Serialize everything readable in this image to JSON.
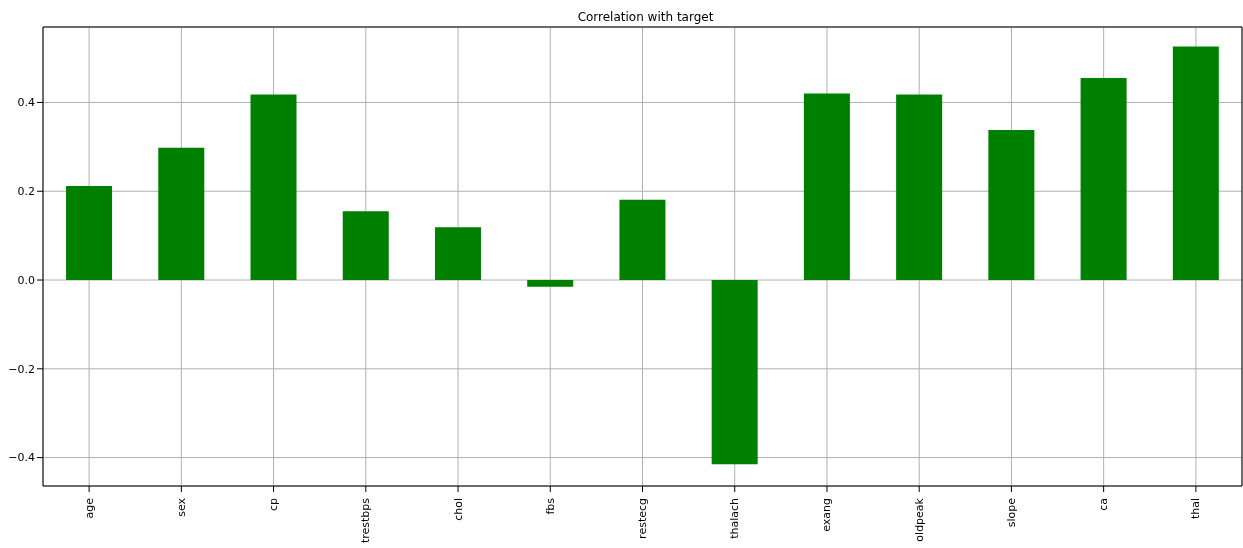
{
  "chart_data": {
    "type": "bar",
    "title": "Correlation with target",
    "categories": [
      "age",
      "sex",
      "cp",
      "trestbps",
      "chol",
      "fbs",
      "restecg",
      "thalach",
      "exang",
      "oldpeak",
      "slope",
      "ca",
      "thal"
    ],
    "values": [
      0.212,
      0.298,
      0.418,
      0.155,
      0.119,
      -0.015,
      0.181,
      -0.415,
      0.42,
      0.418,
      0.338,
      0.455,
      0.526
    ],
    "color": "#008000",
    "ylim": [
      -0.464,
      0.57
    ],
    "yticks": [
      {
        "value": -0.4,
        "label": "−0.4"
      },
      {
        "value": -0.2,
        "label": "−0.2"
      },
      {
        "value": 0,
        "label": "0.0"
      },
      {
        "value": 0.2,
        "label": "0.2"
      },
      {
        "value": 0.4,
        "label": "0.4"
      }
    ],
    "grid": true
  }
}
